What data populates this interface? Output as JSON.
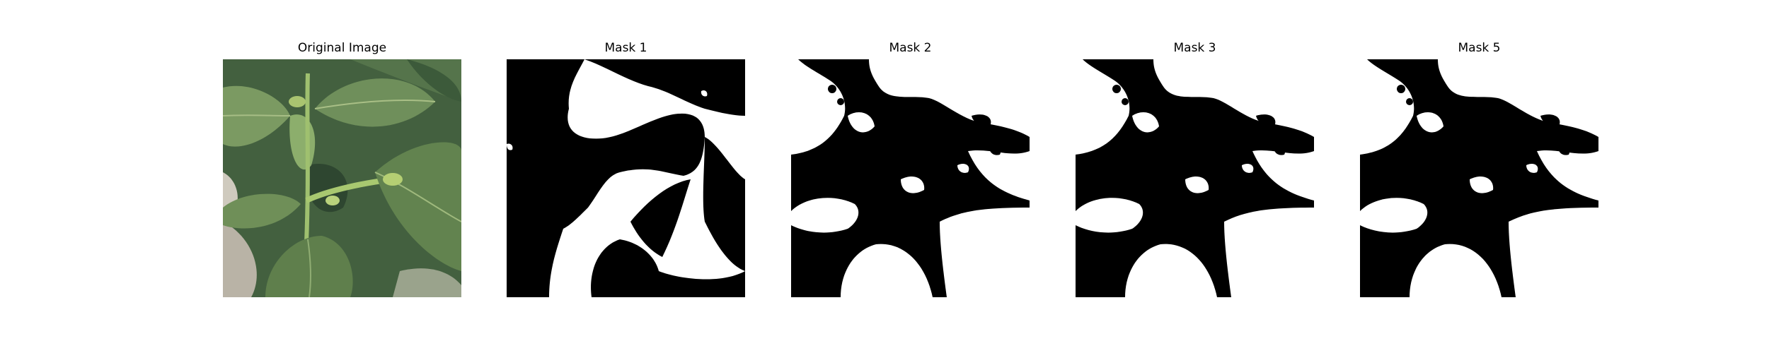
{
  "panels": [
    {
      "title": "Original Image"
    },
    {
      "title": "Mask 1"
    },
    {
      "title": "Mask 2"
    },
    {
      "title": "Mask 3"
    },
    {
      "title": "Mask 5"
    }
  ],
  "colors": {
    "mask_foreground": "#ffffff",
    "mask_background": "#000000",
    "leaf_dark": "#2f4a34",
    "leaf_light": "#7f9e66"
  }
}
